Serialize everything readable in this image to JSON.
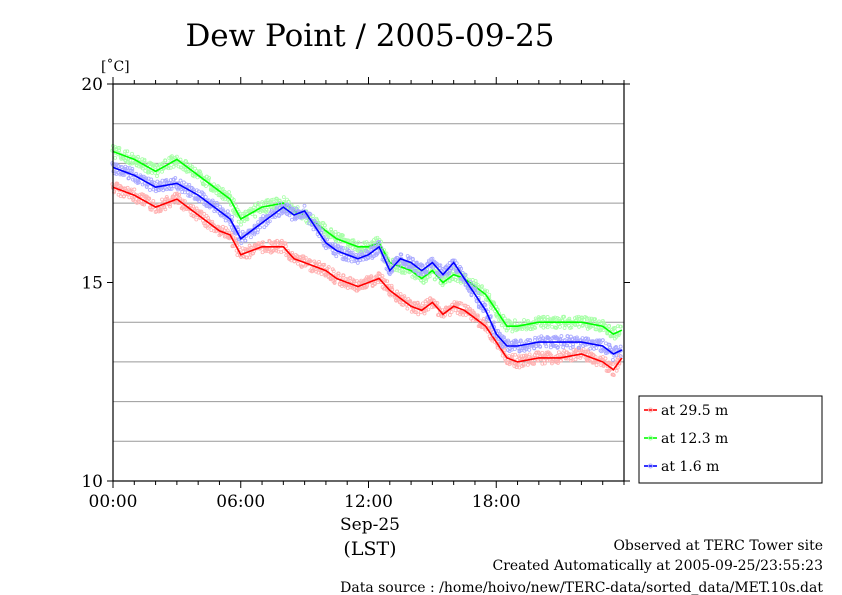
{
  "chart_data": {
    "type": "line",
    "title": "Dew Point / 2005-09-25",
    "ylabel": "[˚C]",
    "ylim": [
      10,
      20
    ],
    "yticks": [
      10,
      15,
      20
    ],
    "ygrid": [
      11,
      12,
      13,
      14,
      16,
      17,
      18,
      19
    ],
    "xlim_hours": [
      0,
      24
    ],
    "xticks": [
      {
        "hour": 0,
        "label": "00:00"
      },
      {
        "hour": 6,
        "label": "06:00"
      },
      {
        "hour": 12,
        "label": "12:00"
      },
      {
        "hour": 18,
        "label": "18:00"
      }
    ],
    "date_label": "Sep-25",
    "tz_label": "(LST)",
    "x": [
      0,
      1,
      2,
      3,
      4,
      5,
      5.5,
      6,
      7,
      8,
      8.5,
      9,
      9.5,
      10,
      10.5,
      11,
      11.5,
      12,
      12.5,
      13,
      13.5,
      14,
      14.5,
      15,
      15.5,
      16,
      16.5,
      17,
      17.5,
      18,
      18.5,
      19,
      20,
      21,
      22,
      23,
      23.5,
      23.9
    ],
    "series": [
      {
        "name": "at 29.5 m",
        "color": "#ff0000",
        "fill": "#ffb0b0",
        "values": [
          17.4,
          17.2,
          16.9,
          17.1,
          16.7,
          16.3,
          16.2,
          15.7,
          15.9,
          15.9,
          15.6,
          15.5,
          15.4,
          15.3,
          15.1,
          15.0,
          14.9,
          15.0,
          15.1,
          14.8,
          14.6,
          14.4,
          14.3,
          14.5,
          14.2,
          14.4,
          14.3,
          14.1,
          13.9,
          13.5,
          13.1,
          13.0,
          13.1,
          13.1,
          13.2,
          13.0,
          12.8,
          13.1
        ]
      },
      {
        "name": "at 12.3 m",
        "color": "#00ff00",
        "fill": "#a8ffa8",
        "values": [
          18.3,
          18.1,
          17.8,
          18.1,
          17.7,
          17.3,
          17.1,
          16.6,
          16.9,
          17.0,
          16.8,
          16.7,
          16.5,
          16.3,
          16.1,
          16.0,
          15.9,
          15.9,
          16.0,
          15.5,
          15.4,
          15.3,
          15.1,
          15.3,
          15.0,
          15.2,
          15.1,
          14.9,
          14.7,
          14.3,
          13.9,
          13.9,
          14.0,
          14.0,
          14.0,
          13.9,
          13.7,
          13.8
        ]
      },
      {
        "name": "at 1.6 m",
        "color": "#0000ff",
        "fill": "#a8a8ff",
        "values": [
          17.9,
          17.7,
          17.4,
          17.5,
          17.2,
          16.8,
          16.6,
          16.1,
          16.5,
          16.9,
          16.7,
          16.8,
          16.4,
          16.0,
          15.8,
          15.7,
          15.6,
          15.7,
          15.9,
          15.3,
          15.6,
          15.5,
          15.3,
          15.5,
          15.2,
          15.5,
          15.1,
          14.7,
          14.3,
          13.7,
          13.4,
          13.4,
          13.5,
          13.5,
          13.5,
          13.4,
          13.2,
          13.3
        ]
      }
    ],
    "legend": [
      "at 29.5 m",
      "at 12.3 m",
      "at 1.6 m"
    ],
    "legend_position": "right"
  },
  "footer": {
    "line1": "Observed at TERC Tower site",
    "line2": "Created Automatically at 2005-09-25/23:55:23",
    "line3": "Data source : /home/hoivo/new/TERC-data/sorted_data/MET.10s.dat"
  }
}
